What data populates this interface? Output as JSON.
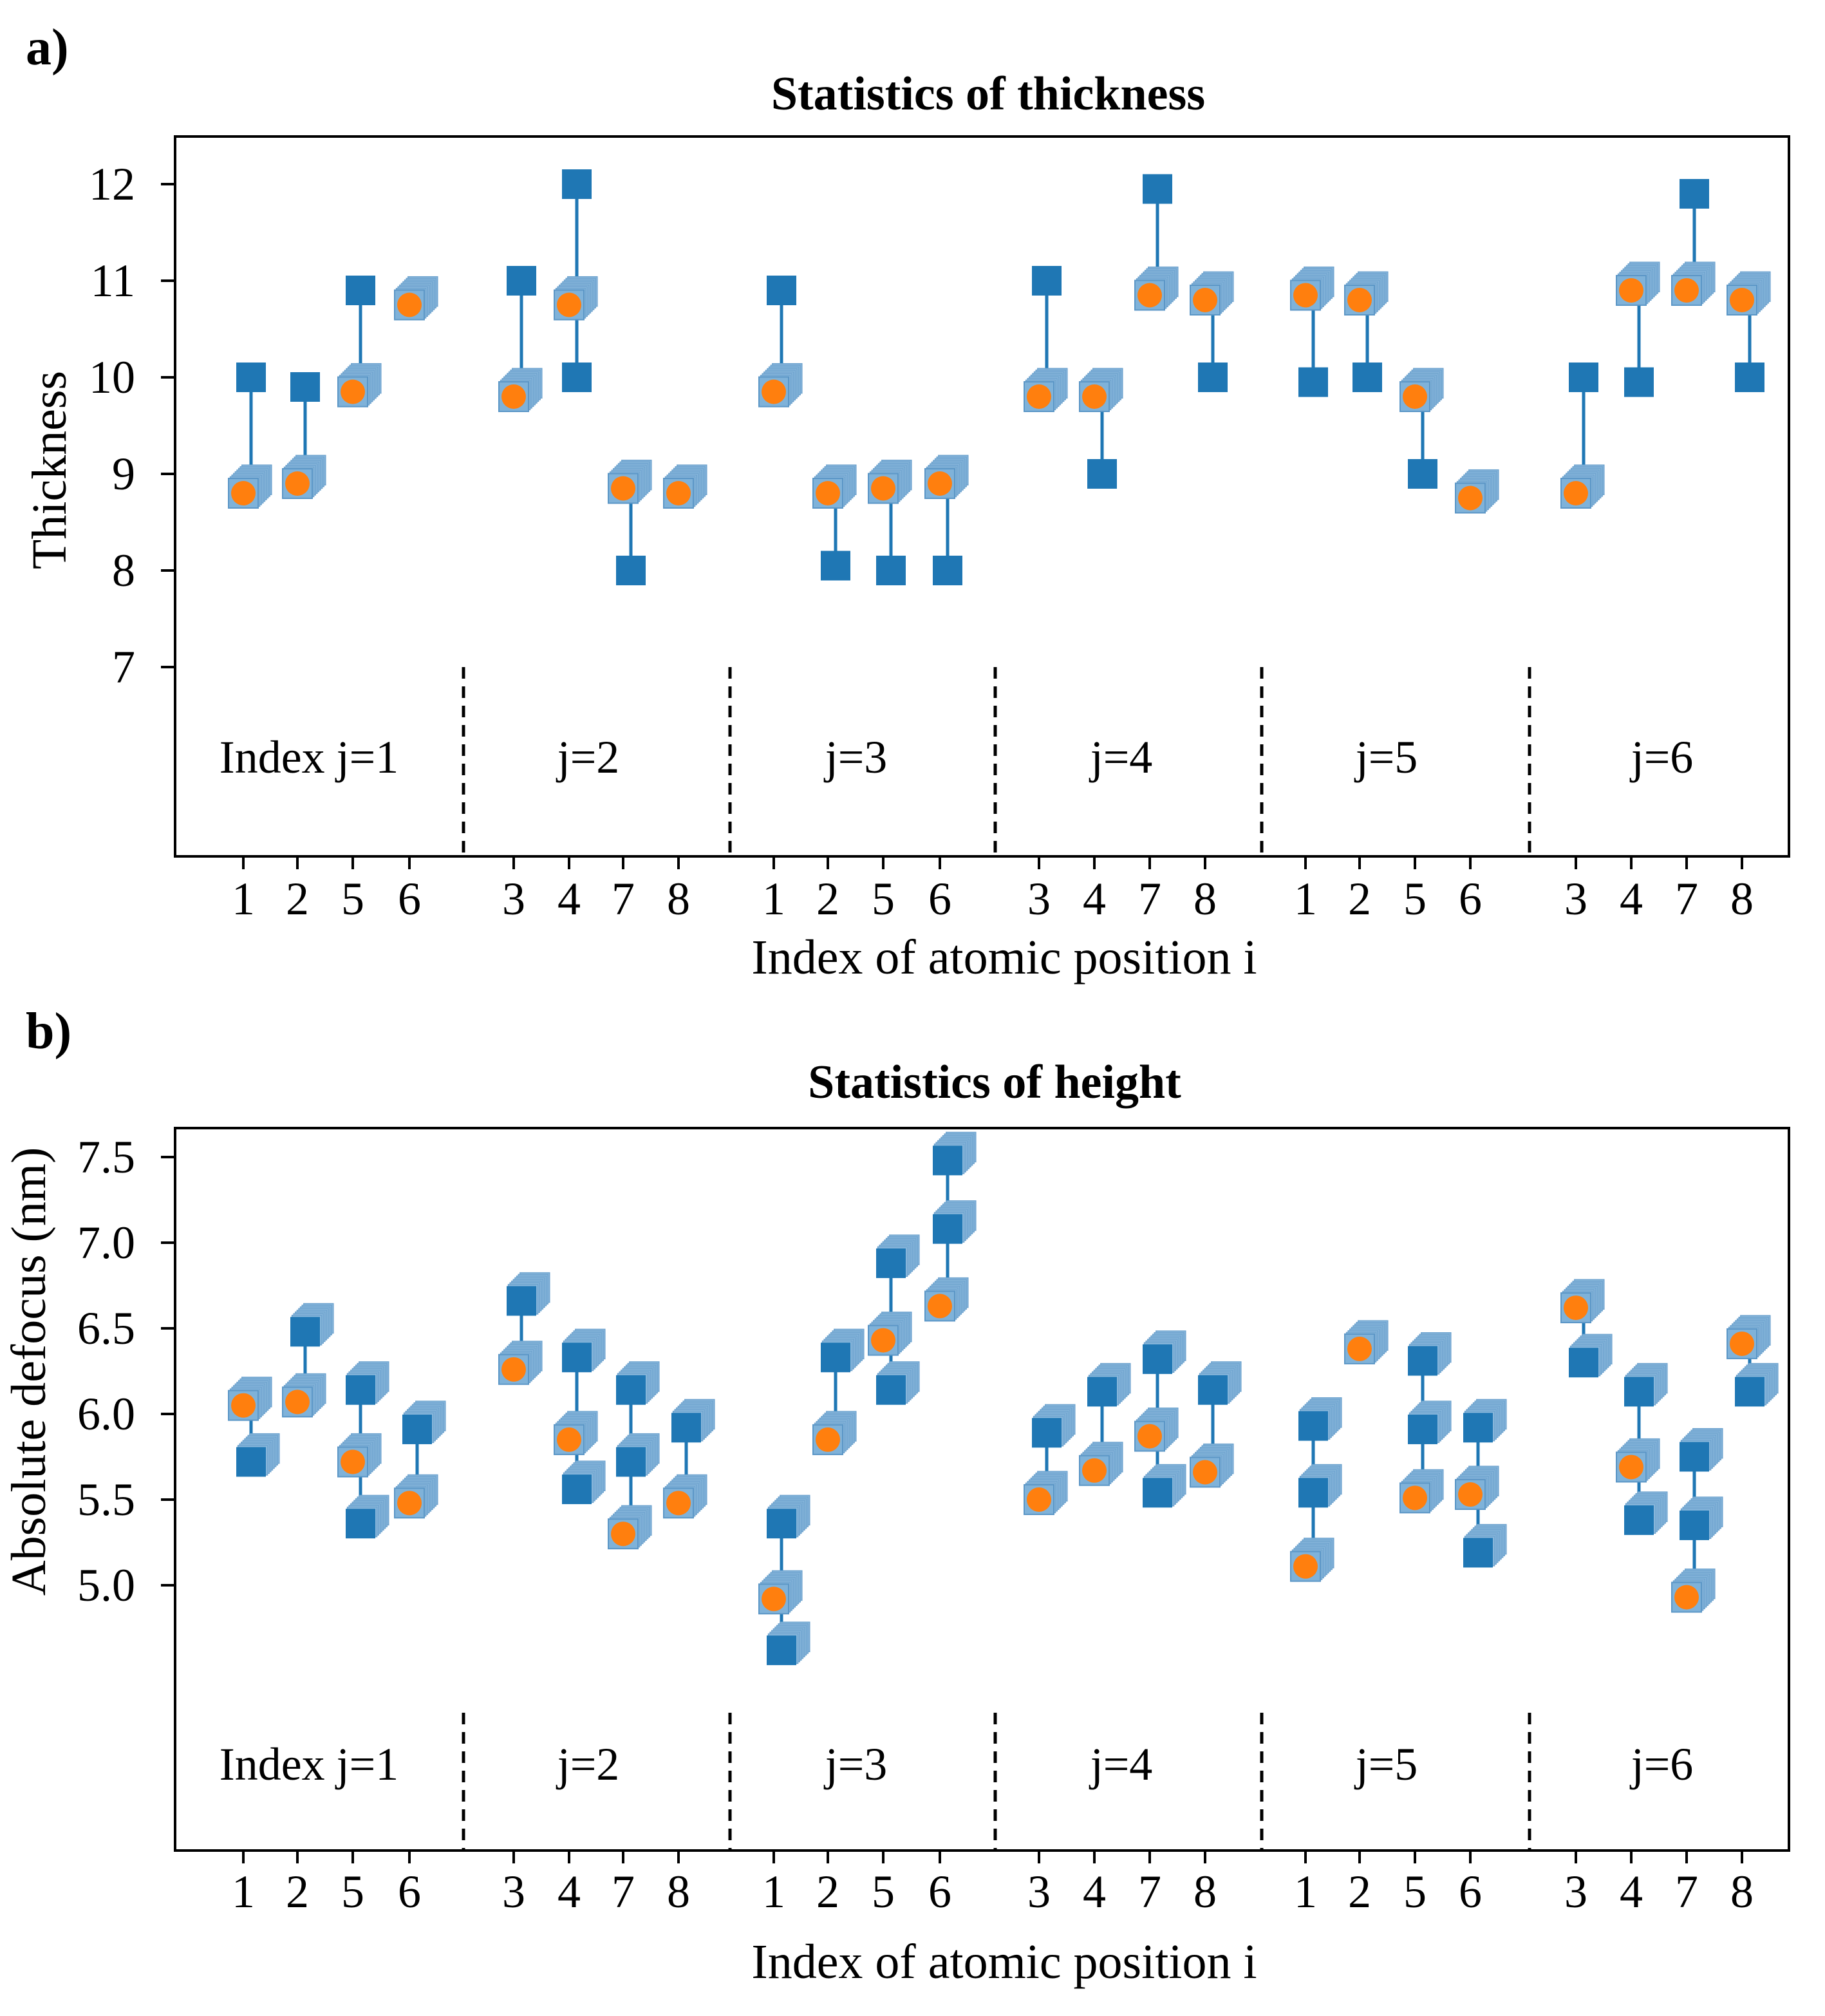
{
  "chart_data": [
    {
      "type": "scatter",
      "panel_label": "a)",
      "title": "Statistics of thickness",
      "xlabel": "Index of atomic position i",
      "ylabel": "Thickness",
      "ylim": [
        5.0,
        12.5
      ],
      "yticks": [
        7,
        8,
        9,
        10,
        11,
        12
      ],
      "xticks": [
        "1",
        "2",
        "5",
        "6",
        "3",
        "4",
        "7",
        "8",
        "1",
        "2",
        "5",
        "6",
        "3",
        "4",
        "7",
        "8",
        "1",
        "2",
        "5",
        "6",
        "3",
        "4",
        "7",
        "8"
      ],
      "groups": [
        "Index j=1",
        "j=2",
        "j=3",
        "j=4",
        "j=5",
        "j=6"
      ],
      "legend": "none",
      "grid": false,
      "points": [
        {
          "group": 1,
          "i": 1,
          "circle": 8.8,
          "square": 10.0
        },
        {
          "group": 1,
          "i": 2,
          "circle": 8.9,
          "square": 9.9
        },
        {
          "group": 1,
          "i": 5,
          "circle": 9.85,
          "square": 10.9
        },
        {
          "group": 1,
          "i": 6,
          "circle": 10.75,
          "square": null
        },
        {
          "group": 2,
          "i": 3,
          "circle": 9.8,
          "square": 11.0
        },
        {
          "group": 2,
          "i": 4,
          "circle": 10.75,
          "square": [
            12.0,
            10.0
          ]
        },
        {
          "group": 2,
          "i": 7,
          "circle": 8.85,
          "square": 8.0
        },
        {
          "group": 2,
          "i": 8,
          "circle": 8.8,
          "square": null
        },
        {
          "group": 3,
          "i": 1,
          "circle": 9.85,
          "square": 10.9
        },
        {
          "group": 3,
          "i": 2,
          "circle": 8.8,
          "square": 8.05
        },
        {
          "group": 3,
          "i": 5,
          "circle": 8.85,
          "square": 8.0
        },
        {
          "group": 3,
          "i": 6,
          "circle": 8.9,
          "square": 8.0
        },
        {
          "group": 4,
          "i": 3,
          "circle": 9.8,
          "square": 11.0
        },
        {
          "group": 4,
          "i": 4,
          "circle": 9.8,
          "square": 9.0
        },
        {
          "group": 4,
          "i": 7,
          "circle": 10.85,
          "square": 11.95
        },
        {
          "group": 4,
          "i": 8,
          "circle": 10.8,
          "square": 10.0
        },
        {
          "group": 5,
          "i": 1,
          "circle": 10.85,
          "square": 9.95
        },
        {
          "group": 5,
          "i": 2,
          "circle": 10.8,
          "square": 10.0
        },
        {
          "group": 5,
          "i": 5,
          "circle": 9.8,
          "square": 9.0
        },
        {
          "group": 5,
          "i": 6,
          "circle": 8.75,
          "square": null
        },
        {
          "group": 6,
          "i": 3,
          "circle": 8.8,
          "square": 10.0
        },
        {
          "group": 6,
          "i": 4,
          "circle": 10.9,
          "square": 9.95
        },
        {
          "group": 6,
          "i": 7,
          "circle": 10.9,
          "square": 11.9
        },
        {
          "group": 6,
          "i": 8,
          "circle": 10.8,
          "square": 10.0
        }
      ]
    },
    {
      "type": "scatter",
      "panel_label": "b)",
      "title": "Statistics of height",
      "xlabel": "Index of atomic position i",
      "ylabel": "Absolute defocus (nm)",
      "ylim": [
        3.9,
        7.67
      ],
      "yticks": [
        "5.0",
        "5.5",
        "6.0",
        "6.5",
        "7.0",
        "7.5"
      ],
      "xticks": [
        "1",
        "2",
        "5",
        "6",
        "3",
        "4",
        "7",
        "8",
        "1",
        "2",
        "5",
        "6",
        "3",
        "4",
        "7",
        "8",
        "1",
        "2",
        "5",
        "6",
        "3",
        "4",
        "7",
        "8"
      ],
      "groups": [
        "Index j=1",
        "j=2",
        "j=3",
        "j=4",
        "j=5",
        "j=6"
      ],
      "legend": "none",
      "grid": false,
      "points": [
        {
          "group": 1,
          "i": 1,
          "circle": 6.05,
          "square": 5.72
        },
        {
          "group": 1,
          "i": 2,
          "circle": 6.07,
          "square": 6.48
        },
        {
          "group": 1,
          "i": 5,
          "circle": 5.72,
          "square": [
            6.14,
            5.36
          ]
        },
        {
          "group": 1,
          "i": 6,
          "circle": 5.48,
          "square": 5.91
        },
        {
          "group": 2,
          "i": 3,
          "circle": 6.26,
          "square": 6.66
        },
        {
          "group": 2,
          "i": 4,
          "circle": 5.85,
          "square": [
            6.33,
            5.56
          ]
        },
        {
          "group": 2,
          "i": 7,
          "circle": 5.3,
          "square": [
            6.14,
            5.72
          ]
        },
        {
          "group": 2,
          "i": 8,
          "circle": 5.48,
          "square": 5.92
        },
        {
          "group": 3,
          "i": 1,
          "circle": 4.92,
          "square": [
            5.36,
            4.62
          ]
        },
        {
          "group": 3,
          "i": 2,
          "circle": 5.85,
          "square": 6.33
        },
        {
          "group": 3,
          "i": 5,
          "circle": 6.43,
          "square": [
            6.88,
            6.14
          ]
        },
        {
          "group": 3,
          "i": 6,
          "circle": 6.63,
          "square": [
            7.08,
            7.48
          ]
        },
        {
          "group": 4,
          "i": 3,
          "circle": 5.5,
          "square": 5.89
        },
        {
          "group": 4,
          "i": 4,
          "circle": 5.67,
          "square": 6.13
        },
        {
          "group": 4,
          "i": 7,
          "circle": 5.87,
          "square": [
            6.32,
            5.54
          ]
        },
        {
          "group": 4,
          "i": 8,
          "circle": 5.66,
          "square": 6.14
        },
        {
          "group": 5,
          "i": 1,
          "circle": 5.11,
          "square": [
            5.93,
            5.54
          ]
        },
        {
          "group": 5,
          "i": 2,
          "circle": 6.38,
          "square": null
        },
        {
          "group": 5,
          "i": 5,
          "circle": 5.51,
          "square": [
            6.31,
            5.91
          ]
        },
        {
          "group": 5,
          "i": 6,
          "circle": 5.53,
          "square": [
            5.92,
            5.19
          ]
        },
        {
          "group": 6,
          "i": 3,
          "circle": 6.62,
          "square": 6.3
        },
        {
          "group": 6,
          "i": 4,
          "circle": 5.69,
          "square": [
            6.13,
            5.38
          ]
        },
        {
          "group": 6,
          "i": 7,
          "circle": 4.93,
          "square": [
            5.75,
            5.35
          ]
        },
        {
          "group": 6,
          "i": 8,
          "circle": 6.41,
          "square": 6.13
        }
      ]
    }
  ],
  "colors": {
    "square": "#1f77b4",
    "square_shadow": "#8ab8dc",
    "circle": "#ff7f0e",
    "stem": "#1f77b4",
    "frame": "#000000"
  }
}
